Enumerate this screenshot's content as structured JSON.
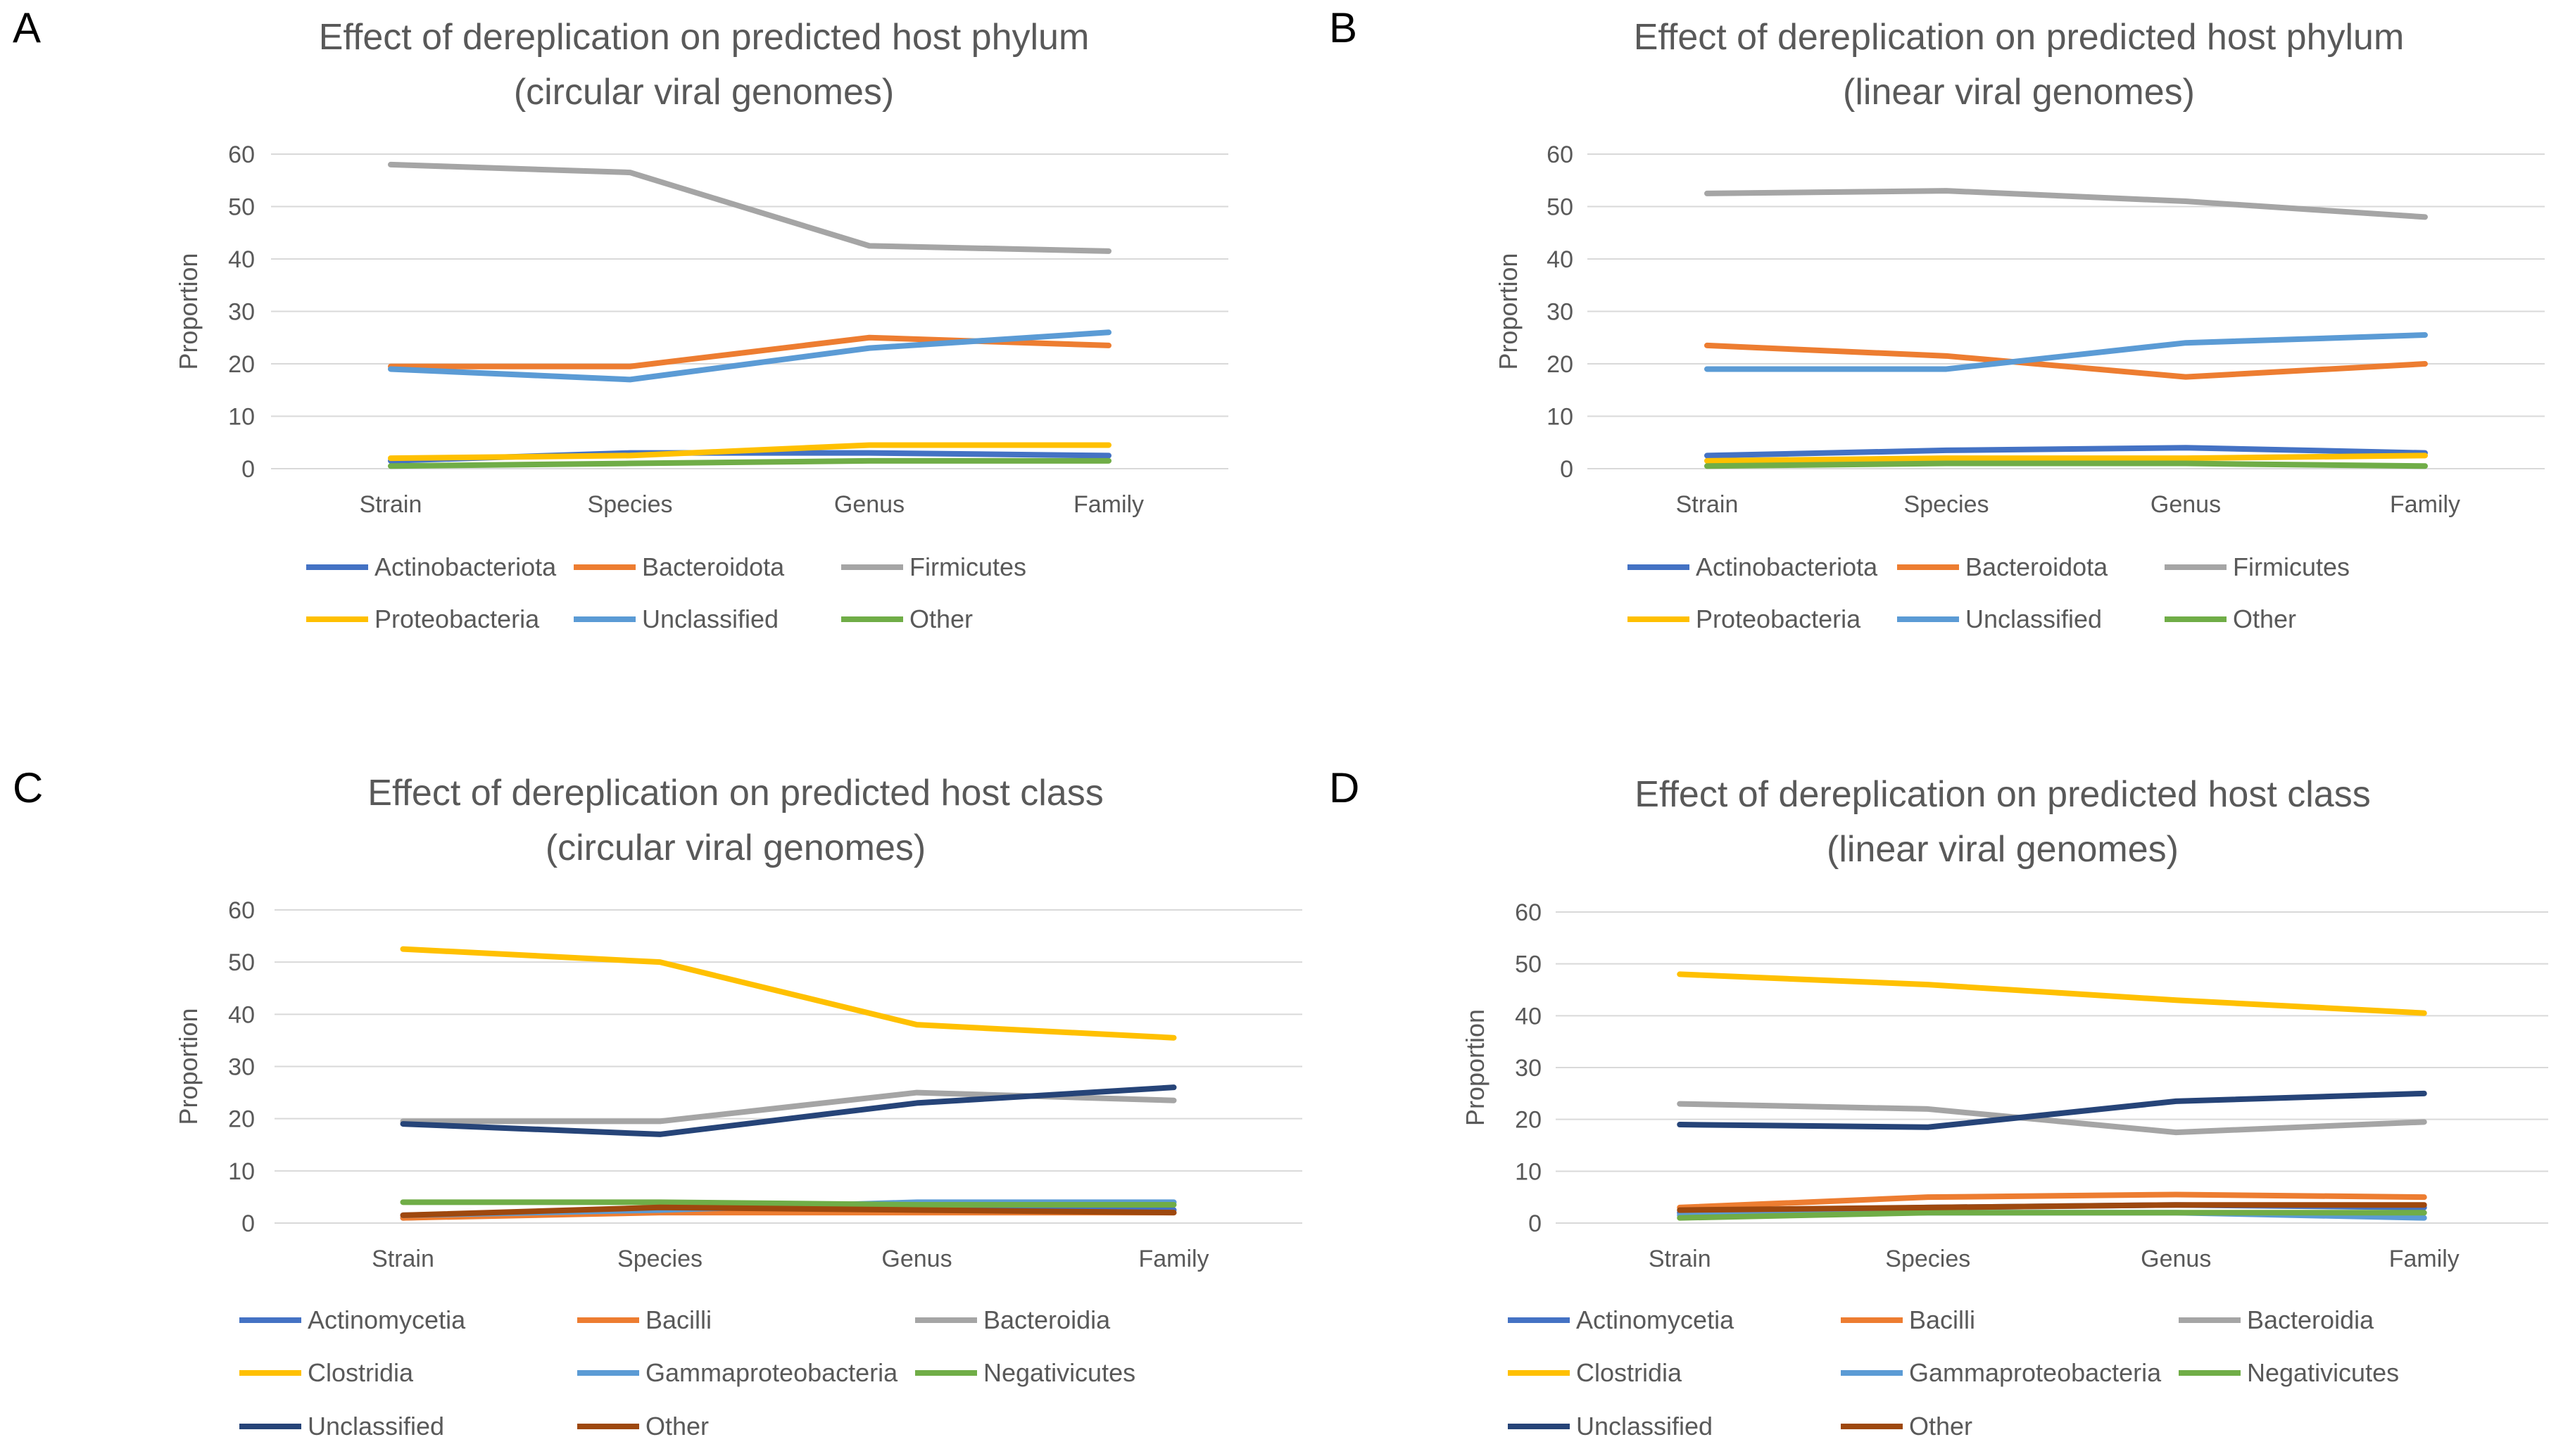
{
  "chart_data": [
    {
      "panel": "A",
      "type": "line",
      "title": [
        "Effect of dereplication on predicted host phylum",
        "(circular viral genomes)"
      ],
      "xlabel": "",
      "ylabel": "Proportion",
      "categories": [
        "Strain",
        "Species",
        "Genus",
        "Family"
      ],
      "ylim": [
        0,
        60
      ],
      "yticks": [
        0,
        10,
        20,
        30,
        40,
        50,
        60
      ],
      "grid": true,
      "legend": "bottom",
      "series": [
        {
          "name": "Actinobacteriota",
          "color": "#4472c4",
          "values": [
            1.5,
            3.0,
            3.0,
            2.5
          ]
        },
        {
          "name": "Bacteroidota",
          "color": "#ed7d31",
          "values": [
            19.5,
            19.5,
            25.0,
            23.5
          ]
        },
        {
          "name": "Firmicutes",
          "color": "#a5a5a5",
          "values": [
            58.0,
            56.5,
            42.5,
            41.5
          ]
        },
        {
          "name": "Proteobacteria",
          "color": "#ffc000",
          "values": [
            2.0,
            2.5,
            4.5,
            4.5
          ]
        },
        {
          "name": "Unclassified",
          "color": "#5b9bd5",
          "values": [
            19.0,
            17.0,
            23.0,
            26.0
          ]
        },
        {
          "name": "Other",
          "color": "#70ad47",
          "values": [
            0.5,
            1.0,
            1.5,
            1.5
          ]
        }
      ]
    },
    {
      "panel": "B",
      "type": "line",
      "title": [
        "Effect of dereplication on predicted host phylum",
        "(linear viral genomes)"
      ],
      "xlabel": "",
      "ylabel": "Proportion",
      "categories": [
        "Strain",
        "Species",
        "Genus",
        "Family"
      ],
      "ylim": [
        0,
        60
      ],
      "yticks": [
        0,
        10,
        20,
        30,
        40,
        50,
        60
      ],
      "grid": true,
      "legend": "bottom",
      "series": [
        {
          "name": "Actinobacteriota",
          "color": "#4472c4",
          "values": [
            2.5,
            3.5,
            4.0,
            3.0
          ]
        },
        {
          "name": "Bacteroidota",
          "color": "#ed7d31",
          "values": [
            23.5,
            21.5,
            17.5,
            20.0
          ]
        },
        {
          "name": "Firmicutes",
          "color": "#a5a5a5",
          "values": [
            52.5,
            53.0,
            51.0,
            48.0
          ]
        },
        {
          "name": "Proteobacteria",
          "color": "#ffc000",
          "values": [
            1.5,
            2.0,
            2.0,
            2.5
          ]
        },
        {
          "name": "Unclassified",
          "color": "#5b9bd5",
          "values": [
            19.0,
            19.0,
            24.0,
            25.5
          ]
        },
        {
          "name": "Other",
          "color": "#70ad47",
          "values": [
            0.5,
            1.0,
            1.0,
            0.5
          ]
        }
      ]
    },
    {
      "panel": "C",
      "type": "line",
      "title": [
        "Effect of dereplication on predicted host class",
        "(circular viral genomes)"
      ],
      "xlabel": "",
      "ylabel": "Proportion",
      "categories": [
        "Strain",
        "Species",
        "Genus",
        "Family"
      ],
      "ylim": [
        0,
        60
      ],
      "yticks": [
        0,
        10,
        20,
        30,
        40,
        50,
        60
      ],
      "grid": true,
      "legend": "bottom",
      "series": [
        {
          "name": "Actinomycetia",
          "color": "#4472c4",
          "values": [
            1.0,
            2.5,
            3.0,
            2.5
          ]
        },
        {
          "name": "Bacilli",
          "color": "#ed7d31",
          "values": [
            1.0,
            2.0,
            2.0,
            2.0
          ]
        },
        {
          "name": "Bacteroidia",
          "color": "#a5a5a5",
          "values": [
            19.5,
            19.5,
            25.0,
            23.5
          ]
        },
        {
          "name": "Clostridia",
          "color": "#ffc000",
          "values": [
            52.5,
            50.0,
            38.0,
            35.5
          ]
        },
        {
          "name": "Gammaproteobacteria",
          "color": "#5b9bd5",
          "values": [
            1.5,
            2.5,
            4.0,
            4.0
          ]
        },
        {
          "name": "Negativicutes",
          "color": "#70ad47",
          "values": [
            4.0,
            4.0,
            3.5,
            3.5
          ]
        },
        {
          "name": "Unclassified",
          "color": "#264478",
          "values": [
            19.0,
            17.0,
            23.0,
            26.0
          ]
        },
        {
          "name": "Other",
          "color": "#9e480e",
          "values": [
            1.5,
            3.0,
            2.5,
            2.0
          ]
        }
      ]
    },
    {
      "panel": "D",
      "type": "line",
      "title": [
        "Effect of dereplication on predicted host class",
        "(linear viral genomes)"
      ],
      "xlabel": "",
      "ylabel": "Proportion",
      "categories": [
        "Strain",
        "Species",
        "Genus",
        "Family"
      ],
      "ylim": [
        0,
        60
      ],
      "yticks": [
        0,
        10,
        20,
        30,
        40,
        50,
        60
      ],
      "grid": true,
      "legend": "bottom",
      "series": [
        {
          "name": "Actinomycetia",
          "color": "#4472c4",
          "values": [
            2.0,
            3.0,
            3.5,
            3.0
          ]
        },
        {
          "name": "Bacilli",
          "color": "#ed7d31",
          "values": [
            3.0,
            5.0,
            5.5,
            5.0
          ]
        },
        {
          "name": "Bacteroidia",
          "color": "#a5a5a5",
          "values": [
            23.0,
            22.0,
            17.5,
            19.5
          ]
        },
        {
          "name": "Clostridia",
          "color": "#ffc000",
          "values": [
            48.0,
            46.0,
            43.0,
            40.5
          ]
        },
        {
          "name": "Gammaproteobacteria",
          "color": "#5b9bd5",
          "values": [
            1.5,
            2.0,
            2.0,
            1.0
          ]
        },
        {
          "name": "Negativicutes",
          "color": "#70ad47",
          "values": [
            1.0,
            2.0,
            2.0,
            2.0
          ]
        },
        {
          "name": "Unclassified",
          "color": "#264478",
          "values": [
            19.0,
            18.5,
            23.5,
            25.0
          ]
        },
        {
          "name": "Other",
          "color": "#9e480e",
          "values": [
            2.5,
            3.0,
            3.5,
            3.5
          ]
        }
      ]
    }
  ]
}
